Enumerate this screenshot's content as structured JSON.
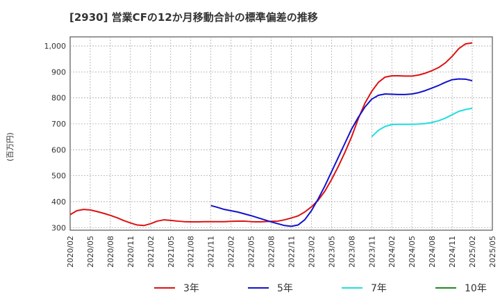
{
  "chart_data": {
    "type": "line",
    "title": "[2930]  営業CFの12か月移動合計の標準偏差の推移",
    "ylabel": "(百万円)",
    "xlabel": "",
    "ylim": [
      290,
      1035
    ],
    "yticks": [
      300,
      400,
      500,
      600,
      700,
      800,
      900,
      1000
    ],
    "ytick_labels": [
      "300",
      "400",
      "500",
      "600",
      "700",
      "800",
      "900",
      "1,000"
    ],
    "xlim": [
      "2020/02",
      "2025/05"
    ],
    "xtick_labels": [
      "2020/02",
      "2020/05",
      "2020/08",
      "2020/11",
      "2021/02",
      "2021/05",
      "2021/08",
      "2021/11",
      "2022/02",
      "2022/05",
      "2022/08",
      "2022/11",
      "2023/02",
      "2023/05",
      "2023/08",
      "2023/11",
      "2024/02",
      "2024/05",
      "2024/08",
      "2024/11",
      "2025/02",
      "2025/05"
    ],
    "grid": true,
    "legend_position": "bottom",
    "series": [
      {
        "name": "3年",
        "color": "#dd1111",
        "x": [
          "2020/02",
          "2020/03",
          "2020/04",
          "2020/05",
          "2020/06",
          "2020/07",
          "2020/08",
          "2020/09",
          "2020/10",
          "2020/11",
          "2020/12",
          "2021/01",
          "2021/02",
          "2021/03",
          "2021/04",
          "2021/05",
          "2021/06",
          "2021/07",
          "2021/08",
          "2021/09",
          "2021/10",
          "2021/11",
          "2021/12",
          "2022/01",
          "2022/02",
          "2022/03",
          "2022/04",
          "2022/05",
          "2022/06",
          "2022/07",
          "2022/08",
          "2022/09",
          "2022/10",
          "2022/11",
          "2022/12",
          "2023/01",
          "2023/02",
          "2023/03",
          "2023/04",
          "2023/05",
          "2023/06",
          "2023/07",
          "2023/08",
          "2023/09",
          "2023/10",
          "2023/11",
          "2023/12",
          "2024/01",
          "2024/02",
          "2024/03",
          "2024/04",
          "2024/05",
          "2024/06",
          "2024/07",
          "2024/08",
          "2024/09",
          "2024/10",
          "2024/11",
          "2024/12",
          "2025/01",
          "2025/02"
        ],
        "values": [
          350,
          365,
          370,
          368,
          362,
          355,
          347,
          338,
          327,
          318,
          310,
          308,
          315,
          325,
          330,
          328,
          325,
          323,
          322,
          322,
          323,
          323,
          323,
          323,
          324,
          325,
          325,
          323,
          322,
          323,
          324,
          325,
          330,
          337,
          345,
          360,
          380,
          405,
          440,
          485,
          535,
          590,
          650,
          720,
          780,
          825,
          860,
          880,
          885,
          885,
          884,
          884,
          888,
          895,
          905,
          917,
          935,
          960,
          990,
          1008,
          1012
        ]
      },
      {
        "name": "5年",
        "color": "#1111cc",
        "x": [
          "2021/11",
          "2021/12",
          "2022/01",
          "2022/02",
          "2022/03",
          "2022/04",
          "2022/05",
          "2022/06",
          "2022/07",
          "2022/08",
          "2022/09",
          "2022/10",
          "2022/11",
          "2022/12",
          "2023/01",
          "2023/02",
          "2023/03",
          "2023/04",
          "2023/05",
          "2023/06",
          "2023/07",
          "2023/08",
          "2023/09",
          "2023/10",
          "2023/11",
          "2023/12",
          "2024/01",
          "2024/02",
          "2024/03",
          "2024/04",
          "2024/05",
          "2024/06",
          "2024/07",
          "2024/08",
          "2024/09",
          "2024/10",
          "2024/11",
          "2024/12",
          "2025/01",
          "2025/02"
        ],
        "values": [
          385,
          378,
          370,
          365,
          360,
          353,
          346,
          338,
          330,
          322,
          315,
          308,
          305,
          310,
          330,
          365,
          410,
          460,
          515,
          570,
          625,
          680,
          725,
          765,
          795,
          810,
          815,
          814,
          813,
          813,
          815,
          820,
          828,
          838,
          848,
          860,
          870,
          873,
          872,
          866
        ]
      },
      {
        "name": "7年",
        "color": "#22dddd",
        "x": [
          "2023/11",
          "2023/12",
          "2024/01",
          "2024/02",
          "2024/03",
          "2024/04",
          "2024/05",
          "2024/06",
          "2024/07",
          "2024/08",
          "2024/09",
          "2024/10",
          "2024/11",
          "2024/12",
          "2025/01",
          "2025/02"
        ],
        "values": [
          650,
          675,
          690,
          697,
          698,
          698,
          698,
          699,
          701,
          705,
          712,
          722,
          735,
          748,
          755,
          760
        ]
      },
      {
        "name": "10年",
        "color": "#228822",
        "x": [],
        "values": []
      }
    ]
  }
}
